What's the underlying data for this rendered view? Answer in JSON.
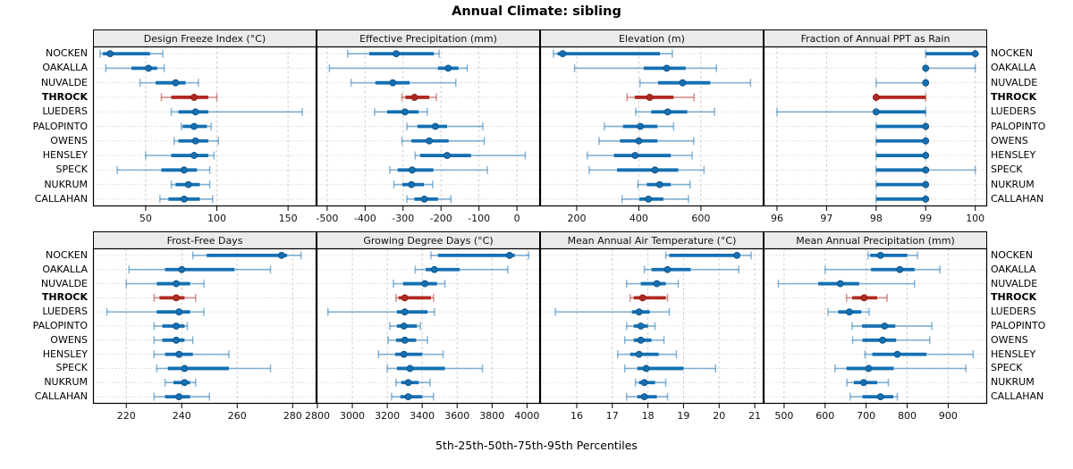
{
  "title": "Annual Climate: sibling",
  "xlabel": "5th-25th-50th-75th-95th Percentiles",
  "percentile_labels": [
    "5th",
    "25th",
    "50th",
    "75th",
    "95th"
  ],
  "stations": [
    "NOCKEN",
    "OAKALLA",
    "NUVALDE",
    "THROCK",
    "LUEDERS",
    "PALOPINTO",
    "OWENS",
    "HENSLEY",
    "SPECK",
    "NUKRUM",
    "CALLAHAN"
  ],
  "highlight_station": "THROCK",
  "colors": {
    "blue": "#1570b2",
    "blue_whisker": "rgba(21,112,178,0.5)",
    "blue_dot_edge": "#0c4c80",
    "red": "#b12a22",
    "red_whisker": "rgba(177,42,34,0.5)",
    "red_dot_edge": "#801712",
    "strip_bg": "#ebebeb",
    "border": "#000000",
    "grid": "#d0d0d0",
    "row_guide": "#c8c8c8"
  },
  "chart_data": [
    {
      "type": "scatter",
      "subtype": "percentile-dotplot",
      "row": 0,
      "col": 0,
      "title": "Design Freeze Index (°C)",
      "xlim": [
        13,
        170
      ],
      "ticks": [
        50,
        100,
        150
      ],
      "series": [
        {
          "station": "NOCKEN",
          "values": [
            18,
            20,
            25,
            53,
            62
          ]
        },
        {
          "station": "OAKALLA",
          "values": [
            22,
            40,
            52,
            58,
            63
          ]
        },
        {
          "station": "NUVALDE",
          "values": [
            46,
            57,
            71,
            78,
            87
          ]
        },
        {
          "station": "THROCK",
          "values": [
            61,
            68,
            84,
            94,
            100
          ]
        },
        {
          "station": "LUEDERS",
          "values": [
            68,
            73,
            85,
            94,
            160
          ]
        },
        {
          "station": "PALOPINTO",
          "values": [
            75,
            76,
            84,
            93,
            96
          ]
        },
        {
          "station": "OWENS",
          "values": [
            70,
            73,
            85,
            94,
            101
          ]
        },
        {
          "station": "HENSLEY",
          "values": [
            50,
            68,
            84,
            94,
            98
          ]
        },
        {
          "station": "SPECK",
          "values": [
            30,
            61,
            77,
            86,
            95
          ]
        },
        {
          "station": "NUKRUM",
          "values": [
            68,
            71,
            80,
            88,
            95
          ]
        },
        {
          "station": "CALLAHAN",
          "values": [
            60,
            66,
            77,
            88,
            97
          ]
        }
      ]
    },
    {
      "type": "scatter",
      "subtype": "percentile-dotplot",
      "row": 0,
      "col": 1,
      "title": "Effective Precipitation (mm)",
      "xlim": [
        -528,
        61
      ],
      "ticks": [
        -500,
        -400,
        -300,
        -200,
        -100,
        0
      ],
      "series": [
        {
          "station": "NOCKEN",
          "values": [
            -446,
            -389,
            -318,
            -219,
            -205
          ]
        },
        {
          "station": "OAKALLA",
          "values": [
            -494,
            -208,
            -181,
            -154,
            -131
          ]
        },
        {
          "station": "NUVALDE",
          "values": [
            -437,
            -373,
            -327,
            -283,
            -161
          ]
        },
        {
          "station": "THROCK",
          "values": [
            -303,
            -294,
            -270,
            -231,
            -212
          ]
        },
        {
          "station": "LUEDERS",
          "values": [
            -375,
            -342,
            -295,
            -259,
            -236
          ]
        },
        {
          "station": "PALOPINTO",
          "values": [
            -290,
            -262,
            -215,
            -184,
            -90
          ]
        },
        {
          "station": "OWENS",
          "values": [
            -303,
            -278,
            -231,
            -180,
            -86
          ]
        },
        {
          "station": "HENSLEY",
          "values": [
            -268,
            -255,
            -184,
            -121,
            22
          ]
        },
        {
          "station": "SPECK",
          "values": [
            -335,
            -314,
            -276,
            -220,
            -78
          ]
        },
        {
          "station": "NUKRUM",
          "values": [
            -324,
            -302,
            -278,
            -245,
            -222
          ]
        },
        {
          "station": "CALLAHAN",
          "values": [
            -290,
            -270,
            -244,
            -208,
            -174
          ]
        }
      ]
    },
    {
      "type": "scatter",
      "subtype": "percentile-dotplot",
      "row": 0,
      "col": 2,
      "title": "Elevation (m)",
      "xlim": [
        82,
        802
      ],
      "ticks": [
        200,
        400,
        600
      ],
      "series": [
        {
          "station": "NOCKEN",
          "values": [
            125,
            138,
            155,
            468,
            508
          ]
        },
        {
          "station": "OAKALLA",
          "values": [
            193,
            416,
            490,
            551,
            650
          ]
        },
        {
          "station": "NUVALDE",
          "values": [
            404,
            462,
            541,
            630,
            760
          ]
        },
        {
          "station": "THROCK",
          "values": [
            362,
            387,
            435,
            512,
            578
          ]
        },
        {
          "station": "LUEDERS",
          "values": [
            390,
            440,
            493,
            556,
            644
          ]
        },
        {
          "station": "PALOPINTO",
          "values": [
            289,
            349,
            405,
            460,
            512
          ]
        },
        {
          "station": "OWENS",
          "values": [
            272,
            339,
            400,
            460,
            577
          ]
        },
        {
          "station": "HENSLEY",
          "values": [
            234,
            320,
            388,
            503,
            572
          ]
        },
        {
          "station": "SPECK",
          "values": [
            240,
            330,
            452,
            527,
            610
          ]
        },
        {
          "station": "NUKRUM",
          "values": [
            397,
            426,
            467,
            503,
            565
          ]
        },
        {
          "station": "CALLAHAN",
          "values": [
            346,
            402,
            431,
            479,
            560
          ]
        }
      ]
    },
    {
      "type": "scatter",
      "subtype": "percentile-dotplot",
      "row": 0,
      "col": 3,
      "title": "Fraction of Annual PPT as Rain",
      "xlim": [
        95.73,
        100.24
      ],
      "ticks": [
        96,
        97,
        98,
        99,
        100
      ],
      "series": [
        {
          "station": "NOCKEN",
          "values": [
            99,
            99,
            100,
            100,
            100
          ]
        },
        {
          "station": "OAKALLA",
          "values": [
            99,
            99,
            99,
            99,
            100
          ]
        },
        {
          "station": "NUVALDE",
          "values": [
            98,
            99,
            99,
            99,
            99
          ]
        },
        {
          "station": "THROCK",
          "values": [
            98,
            98,
            98,
            99,
            99
          ]
        },
        {
          "station": "LUEDERS",
          "values": [
            96,
            98,
            98,
            99,
            99
          ]
        },
        {
          "station": "PALOPINTO",
          "values": [
            98,
            98,
            99,
            99,
            99
          ]
        },
        {
          "station": "OWENS",
          "values": [
            98,
            98,
            99,
            99,
            99
          ]
        },
        {
          "station": "HENSLEY",
          "values": [
            98,
            98,
            99,
            99,
            99
          ]
        },
        {
          "station": "SPECK",
          "values": [
            98,
            98,
            99,
            99,
            100
          ]
        },
        {
          "station": "NUKRUM",
          "values": [
            98,
            98,
            99,
            99,
            99
          ]
        },
        {
          "station": "CALLAHAN",
          "values": [
            98,
            98,
            99,
            99,
            99
          ]
        }
      ]
    },
    {
      "type": "scatter",
      "subtype": "percentile-dotplot",
      "row": 1,
      "col": 0,
      "title": "Frost-Free Days",
      "xlim": [
        208,
        288.6
      ],
      "ticks": [
        220,
        240,
        260,
        280
      ],
      "series": [
        {
          "station": "NOCKEN",
          "values": [
            244,
            249,
            276,
            278,
            283
          ]
        },
        {
          "station": "OAKALLA",
          "values": [
            221,
            234,
            240,
            259,
            272
          ]
        },
        {
          "station": "NUVALDE",
          "values": [
            220,
            231,
            238,
            243,
            248
          ]
        },
        {
          "station": "THROCK",
          "values": [
            230,
            232,
            238,
            241,
            245
          ]
        },
        {
          "station": "LUEDERS",
          "values": [
            213,
            231,
            239,
            243,
            248
          ]
        },
        {
          "station": "PALOPINTO",
          "values": [
            230,
            233,
            238,
            241,
            242
          ]
        },
        {
          "station": "OWENS",
          "values": [
            230,
            233,
            238,
            241,
            244
          ]
        },
        {
          "station": "HENSLEY",
          "values": [
            230,
            234,
            239,
            244,
            257
          ]
        },
        {
          "station": "SPECK",
          "values": [
            231,
            235,
            241,
            257,
            272
          ]
        },
        {
          "station": "NUKRUM",
          "values": [
            234,
            237,
            241,
            243,
            245
          ]
        },
        {
          "station": "CALLAHAN",
          "values": [
            230,
            234,
            239,
            243,
            250
          ]
        }
      ]
    },
    {
      "type": "scatter",
      "subtype": "percentile-dotplot",
      "row": 1,
      "col": 1,
      "title": "Growing Degree Days (°C)",
      "xlim": [
        2795,
        4075
      ],
      "ticks": [
        2800,
        3000,
        3200,
        3400,
        3600,
        3800,
        4000
      ],
      "series": [
        {
          "station": "NOCKEN",
          "values": [
            3450,
            3490,
            3900,
            3930,
            4010
          ]
        },
        {
          "station": "OAKALLA",
          "values": [
            3360,
            3420,
            3470,
            3615,
            3890
          ]
        },
        {
          "station": "NUVALDE",
          "values": [
            3235,
            3290,
            3415,
            3485,
            3530
          ]
        },
        {
          "station": "THROCK",
          "values": [
            3250,
            3265,
            3300,
            3450,
            3465
          ]
        },
        {
          "station": "LUEDERS",
          "values": [
            2860,
            3255,
            3300,
            3430,
            3470
          ]
        },
        {
          "station": "PALOPINTO",
          "values": [
            3215,
            3255,
            3295,
            3370,
            3390
          ]
        },
        {
          "station": "OWENS",
          "values": [
            3205,
            3250,
            3300,
            3365,
            3430
          ]
        },
        {
          "station": "HENSLEY",
          "values": [
            3150,
            3245,
            3295,
            3400,
            3520
          ]
        },
        {
          "station": "SPECK",
          "values": [
            3200,
            3255,
            3330,
            3530,
            3745
          ]
        },
        {
          "station": "NUKRUM",
          "values": [
            3250,
            3280,
            3320,
            3380,
            3445
          ]
        },
        {
          "station": "CALLAHAN",
          "values": [
            3225,
            3275,
            3320,
            3400,
            3465
          ]
        }
      ]
    },
    {
      "type": "scatter",
      "subtype": "percentile-dotplot",
      "row": 1,
      "col": 2,
      "title": "Mean Annual Air Temperature (°C)",
      "xlim": [
        14.97,
        21.25
      ],
      "ticks": [
        16,
        17,
        18,
        19,
        20,
        21
      ],
      "series": [
        {
          "station": "NOCKEN",
          "values": [
            18.5,
            18.6,
            20.5,
            20.55,
            20.9
          ]
        },
        {
          "station": "OAKALLA",
          "values": [
            17.9,
            18.1,
            18.55,
            19.2,
            20.55
          ]
        },
        {
          "station": "NUVALDE",
          "values": [
            17.4,
            17.8,
            18.25,
            18.5,
            18.85
          ]
        },
        {
          "station": "THROCK",
          "values": [
            17.5,
            17.6,
            17.85,
            18.5,
            18.55
          ]
        },
        {
          "station": "LUEDERS",
          "values": [
            15.4,
            17.55,
            17.75,
            18.05,
            18.6
          ]
        },
        {
          "station": "PALOPINTO",
          "values": [
            17.4,
            17.6,
            17.8,
            18.0,
            18.2
          ]
        },
        {
          "station": "OWENS",
          "values": [
            17.35,
            17.6,
            17.8,
            18.1,
            18.45
          ]
        },
        {
          "station": "HENSLEY",
          "values": [
            17.15,
            17.5,
            17.75,
            18.3,
            18.8
          ]
        },
        {
          "station": "SPECK",
          "values": [
            17.35,
            17.7,
            17.95,
            19.0,
            19.9
          ]
        },
        {
          "station": "NUKRUM",
          "values": [
            17.65,
            17.75,
            17.9,
            18.2,
            18.5
          ]
        },
        {
          "station": "CALLAHAN",
          "values": [
            17.4,
            17.7,
            17.9,
            18.25,
            18.55
          ]
        }
      ]
    },
    {
      "type": "scatter",
      "subtype": "percentile-dotplot",
      "row": 1,
      "col": 3,
      "title": "Mean Annual Precipitation (mm)",
      "xlim": [
        450,
        995
      ],
      "ticks": [
        500,
        600,
        700,
        800,
        900
      ],
      "series": [
        {
          "station": "NOCKEN",
          "values": [
            705,
            710,
            735,
            800,
            825
          ]
        },
        {
          "station": "OAKALLA",
          "values": [
            600,
            712,
            782,
            818,
            880
          ]
        },
        {
          "station": "NUVALDE",
          "values": [
            486,
            583,
            637,
            683,
            818
          ]
        },
        {
          "station": "THROCK",
          "values": [
            652,
            666,
            695,
            727,
            751
          ]
        },
        {
          "station": "LUEDERS",
          "values": [
            607,
            632,
            659,
            688,
            707
          ]
        },
        {
          "station": "PALOPINTO",
          "values": [
            666,
            690,
            745,
            771,
            860
          ]
        },
        {
          "station": "OWENS",
          "values": [
            667,
            691,
            740,
            773,
            855
          ]
        },
        {
          "station": "HENSLEY",
          "values": [
            697,
            715,
            776,
            847,
            961
          ]
        },
        {
          "station": "SPECK",
          "values": [
            624,
            652,
            706,
            767,
            943
          ]
        },
        {
          "station": "NUKRUM",
          "values": [
            653,
            670,
            694,
            727,
            754
          ]
        },
        {
          "station": "CALLAHAN",
          "values": [
            661,
            691,
            735,
            766,
            776
          ]
        }
      ]
    }
  ]
}
